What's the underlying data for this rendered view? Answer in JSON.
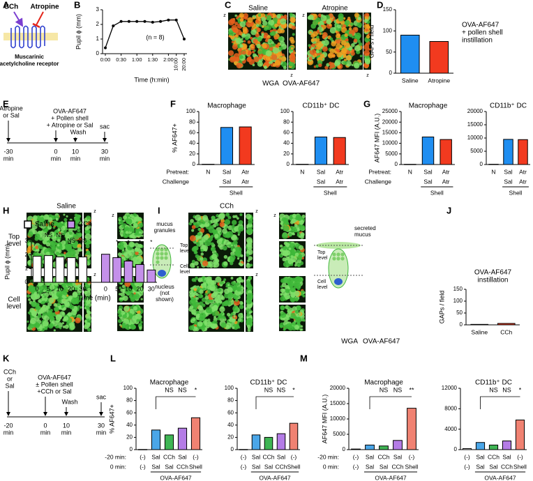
{
  "figure": {
    "panel_labels": [
      "A",
      "B",
      "C",
      "D",
      "E",
      "F",
      "G",
      "H",
      "I",
      "J",
      "K",
      "L",
      "M"
    ],
    "A": {
      "agonist": "CCh",
      "antagonist": "Atropine",
      "receptor": [
        "Muscarinic",
        "acetylcholine receptor"
      ]
    },
    "C": {
      "conditions": [
        "Saline",
        "Atropine"
      ],
      "axis": "z",
      "stains": [
        "WGA",
        "OVA-AF647"
      ]
    },
    "E": {
      "events": [
        {
          "label": [
            "Atropine",
            "or Sal"
          ],
          "time": [
            "-30",
            "min"
          ]
        },
        {
          "label": [
            "OVA-AF647",
            "+ Pollen shell",
            "+ Atropine or Sal"
          ],
          "time": [
            "0",
            "min"
          ]
        },
        {
          "label": [
            "Wash"
          ],
          "time": [
            "10",
            "min"
          ]
        },
        {
          "label": [
            "sac"
          ],
          "time": [
            "30",
            "min"
          ]
        }
      ]
    },
    "I": {
      "conditions": [
        "Saline",
        "CCh"
      ],
      "levels": [
        [
          "Top",
          "level"
        ],
        [
          "Cell",
          "level"
        ]
      ],
      "axis": "z",
      "left_schematic": [
        "mucus",
        "granules"
      ],
      "nucleus": [
        "nucleus",
        "(not",
        "shown)"
      ],
      "right_schematic": [
        "secreted",
        "mucus"
      ],
      "stains": [
        "WGA",
        "OVA-AF647"
      ]
    },
    "K": {
      "events": [
        {
          "label": [
            "CCh",
            "or",
            "Sal"
          ],
          "time": [
            "-20",
            "min"
          ]
        },
        {
          "label": [
            "OVA-AF647",
            "± Pollen shell",
            "+CCh or Sal"
          ],
          "time": [
            "0",
            "min"
          ]
        },
        {
          "label": [
            "Wash"
          ],
          "time": [
            "10",
            "min"
          ]
        },
        {
          "label": [
            "sac"
          ],
          "time": [
            "30",
            "min"
          ]
        }
      ]
    }
  },
  "chart_data": [
    {
      "type": "line",
      "categories": [
        "0:00",
        null,
        "0:30",
        null,
        "1:00",
        null,
        "1:30",
        null,
        "2:00",
        "10:00",
        "20:00"
      ],
      "values": [
        0.4,
        1.9,
        2.2,
        2.2,
        2.2,
        2.2,
        2.15,
        2.2,
        2.3,
        2.3,
        1.0
      ],
      "color": "#000000",
      "ylim": [
        0,
        3
      ],
      "yticks": [
        0,
        1,
        2,
        3
      ],
      "ylabel": "Pupil ϕ (mm)",
      "xlabel": "Time (h:min)",
      "annotation": "(n = 8)"
    },
    {
      "type": "bar",
      "categories": [
        "Saline",
        "Atropine"
      ],
      "values": [
        90,
        75
      ],
      "colors": [
        "#1f8ef1",
        "#f23a1f"
      ],
      "ylim": [
        0,
        150
      ],
      "yticks": [
        0,
        50,
        100,
        150
      ],
      "ylabel": "GAPs / field",
      "annotation": [
        "OVA-AF647",
        "+ pollen shell",
        "instillation"
      ]
    },
    {
      "type": "bar",
      "title": "Macrophage",
      "categories": [
        "N",
        "Sal",
        "Atr"
      ],
      "categories_2": [
        null,
        "Sal",
        "Atr"
      ],
      "row_labels": [
        "Pretreat:",
        "Challenge"
      ],
      "group_label": "Shell",
      "values": [
        0.5,
        70,
        71
      ],
      "colors": [
        "#ffffff",
        "#1f8ef1",
        "#f23a1f"
      ],
      "ylim": [
        0,
        100
      ],
      "yticks": [
        0,
        20,
        40,
        60,
        80,
        100
      ],
      "ylabel": "% AF647+"
    },
    {
      "type": "bar",
      "title": "CD11b⁺ DC",
      "categories": [
        "N",
        "Sal",
        "Atr"
      ],
      "categories_2": [
        null,
        "Sal",
        "Atr"
      ],
      "group_label": "Shell",
      "values": [
        0.5,
        52,
        51
      ],
      "colors": [
        "#ffffff",
        "#1f8ef1",
        "#f23a1f"
      ],
      "ylim": [
        0,
        100
      ],
      "yticks": [
        0,
        20,
        40,
        60,
        80,
        100
      ]
    },
    {
      "type": "bar",
      "title": "Macrophage",
      "categories": [
        "N",
        "Sal",
        "Atr"
      ],
      "categories_2": [
        null,
        "Sal",
        "Atr"
      ],
      "row_labels": [
        "Pretreat:",
        "Challenge"
      ],
      "group_label": "Shell",
      "values": [
        100,
        13000,
        11800
      ],
      "colors": [
        "#ffffff",
        "#1f8ef1",
        "#f23a1f"
      ],
      "ylim": [
        0,
        25000
      ],
      "yticks": [
        0,
        5000,
        10000,
        15000,
        20000,
        25000
      ],
      "ylabel": "AF647 MFI (A.U.)"
    },
    {
      "type": "bar",
      "title": "CD11b⁺ DC",
      "categories": [
        "N",
        "Sal",
        "Atr"
      ],
      "categories_2": [
        null,
        "Sal",
        "Atr"
      ],
      "group_label": "Shell",
      "values": [
        100,
        9500,
        9400
      ],
      "colors": [
        "#ffffff",
        "#1f8ef1",
        "#f23a1f"
      ],
      "ylim": [
        0,
        20000
      ],
      "yticks": [
        0,
        5000,
        10000,
        15000,
        20000
      ]
    },
    {
      "type": "bar",
      "categories": [
        "0",
        "5",
        "10",
        "20",
        "30"
      ],
      "series": [
        {
          "name": "Saline",
          "color": "#ffffff",
          "values": [
            1.9,
            1.95,
            1.85,
            1.8,
            1.85
          ],
          "annotations": [
            null,
            "NS",
            "NS",
            "NS",
            "NS"
          ]
        },
        {
          "name": "CCh",
          "color": "#c490ea",
          "values": [
            2.05,
            1.8,
            1.55,
            1.3,
            0.9
          ],
          "annotations": [
            null,
            "*",
            "*",
            "*",
            "*"
          ]
        }
      ],
      "ylim": [
        0,
        3
      ],
      "yticks": [
        0,
        1,
        2,
        3
      ],
      "ylabel": "Pupil ϕ (mm)",
      "xlabel": "Time (min)",
      "legend": "top-left"
    },
    {
      "type": "bar",
      "title": [
        "OVA-AF647",
        "instillation"
      ],
      "categories": [
        "Saline",
        "CCh"
      ],
      "values": [
        2,
        6
      ],
      "colors": [
        "#1f8ef1",
        "#f23a1f"
      ],
      "ylim": [
        0,
        150
      ],
      "yticks": [
        0,
        50,
        100,
        150
      ],
      "ylabel": "GAPs / field"
    },
    {
      "type": "bar",
      "title": "Macrophage",
      "categories": [
        "(-)",
        "Sal",
        "CCh",
        "Sal",
        "(-)"
      ],
      "categories_2": [
        "(-)",
        "Sal",
        "Sal",
        "CCh",
        "Shell"
      ],
      "label_colors": [
        "#000000",
        "#1f5fd6",
        "#8a3fd1",
        "#1f5fd6",
        "#000000"
      ],
      "label_colors_2": [
        "#000000",
        "#1f5fd6",
        "#1f5fd6",
        "#8a3fd1",
        "#2a9a3a"
      ],
      "row_labels": [
        "-20 min:",
        "0 min:"
      ],
      "group_label": "OVA-AF647",
      "values": [
        0.3,
        32,
        24,
        35,
        52
      ],
      "colors": [
        "#ffffff",
        "#4aa6e8",
        "#3fb554",
        "#b47ce6",
        "#f08272"
      ],
      "annotations": [
        null,
        null,
        "NS",
        "NS",
        "*"
      ],
      "annotation_color": "#1f5fd6",
      "ylim": [
        0,
        100
      ],
      "yticks": [
        0,
        20,
        40,
        60,
        80,
        100
      ],
      "ylabel": "% AF647+"
    },
    {
      "type": "bar",
      "title": "CD11b⁺ DC",
      "categories": [
        "(-)",
        "Sal",
        "CCh",
        "Sal",
        "(-)"
      ],
      "categories_2": [
        "(-)",
        "Sal",
        "Sal",
        "CCh",
        "Shell"
      ],
      "label_colors": [
        "#000000",
        "#1f5fd6",
        "#8a3fd1",
        "#1f5fd6",
        "#000000"
      ],
      "label_colors_2": [
        "#000000",
        "#1f5fd6",
        "#1f5fd6",
        "#8a3fd1",
        "#2a9a3a"
      ],
      "group_label": "OVA-AF647",
      "values": [
        0.3,
        24,
        20,
        26,
        43
      ],
      "colors": [
        "#ffffff",
        "#4aa6e8",
        "#3fb554",
        "#b47ce6",
        "#f08272"
      ],
      "annotations": [
        null,
        null,
        "NS",
        "NS",
        "*"
      ],
      "annotation_color": "#1f5fd6",
      "ylim": [
        0,
        100
      ],
      "yticks": [
        0,
        20,
        40,
        60,
        80,
        100
      ]
    },
    {
      "type": "bar",
      "title": "Macrophage",
      "categories": [
        "(-)",
        "Sal",
        "CCh",
        "Sal",
        "(-)"
      ],
      "categories_2": [
        "(-)",
        "Sal",
        "Sal",
        "CCh",
        "Shell"
      ],
      "label_colors": [
        "#000000",
        "#1f5fd6",
        "#8a3fd1",
        "#1f5fd6",
        "#000000"
      ],
      "label_colors_2": [
        "#000000",
        "#1f5fd6",
        "#1f5fd6",
        "#8a3fd1",
        "#2a9a3a"
      ],
      "row_labels": [
        "-20 min:",
        "0 min:"
      ],
      "group_label": "OVA-AF647",
      "values": [
        200,
        1500,
        1200,
        3000,
        13500
      ],
      "colors": [
        "#ffffff",
        "#4aa6e8",
        "#3fb554",
        "#b47ce6",
        "#f08272"
      ],
      "annotations": [
        null,
        null,
        "NS",
        "NS",
        "**"
      ],
      "annotation_color": "#1f5fd6",
      "ylim": [
        0,
        20000
      ],
      "yticks": [
        0,
        5000,
        10000,
        15000,
        20000
      ],
      "ylabel": "AF647 MFI (A.U.)"
    },
    {
      "type": "bar",
      "title": "CD11b⁺ DC",
      "categories": [
        "(-)",
        "Sal",
        "CCh",
        "Sal",
        "(-)"
      ],
      "categories_2": [
        "(-)",
        "Sal",
        "Sal",
        "CCh",
        "Shell"
      ],
      "label_colors": [
        "#000000",
        "#1f5fd6",
        "#8a3fd1",
        "#1f5fd6",
        "#000000"
      ],
      "label_colors_2": [
        "#000000",
        "#1f5fd6",
        "#1f5fd6",
        "#8a3fd1",
        "#2a9a3a"
      ],
      "group_label": "OVA-AF647",
      "values": [
        200,
        1400,
        900,
        1700,
        5800
      ],
      "colors": [
        "#ffffff",
        "#4aa6e8",
        "#3fb554",
        "#b47ce6",
        "#f08272"
      ],
      "annotations": [
        null,
        null,
        "NS",
        "NS",
        "*"
      ],
      "annotation_color": "#1f5fd6",
      "ylim": [
        0,
        12000
      ],
      "yticks": [
        0,
        4000,
        8000,
        12000
      ]
    }
  ]
}
